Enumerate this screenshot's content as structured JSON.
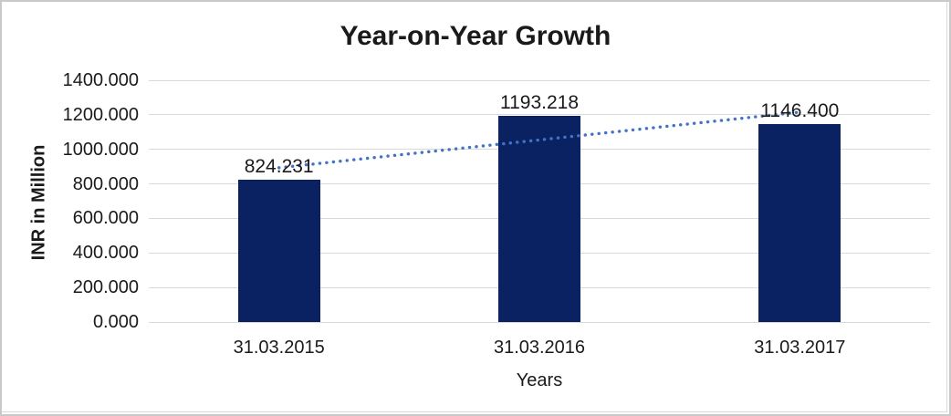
{
  "chart_data": {
    "type": "bar",
    "title": "Year-on-Year Growth",
    "xlabel": "Years",
    "ylabel": "INR in Million",
    "categories": [
      "31.03.2015",
      "31.03.2016",
      "31.03.2017"
    ],
    "values": [
      824.231,
      1193.218,
      1146.4
    ],
    "data_labels": [
      "824.231",
      "1193.218",
      "1146.400"
    ],
    "ylim": [
      0,
      1400
    ],
    "ytick_step": 200,
    "ytick_labels": [
      "0.000",
      "200.000",
      "400.000",
      "600.000",
      "800.000",
      "1000.000",
      "1200.000",
      "1400.000"
    ],
    "grid": "horizontal-gridlines",
    "legend": "none",
    "colors": {
      "bar": "#0A2262",
      "trendline": "#4472C4",
      "gridline": "#D9D9D9",
      "text": "#1A1A1A",
      "background": "#FFFFFF",
      "frame_border": "#C9C9C9"
    },
    "trendline": {
      "style": "dotted",
      "color": "#4472C4",
      "spans_categories": [
        "31.03.2015",
        "31.03.2017"
      ],
      "endpoints_value": [
        893.5,
        1215.7
      ]
    }
  }
}
